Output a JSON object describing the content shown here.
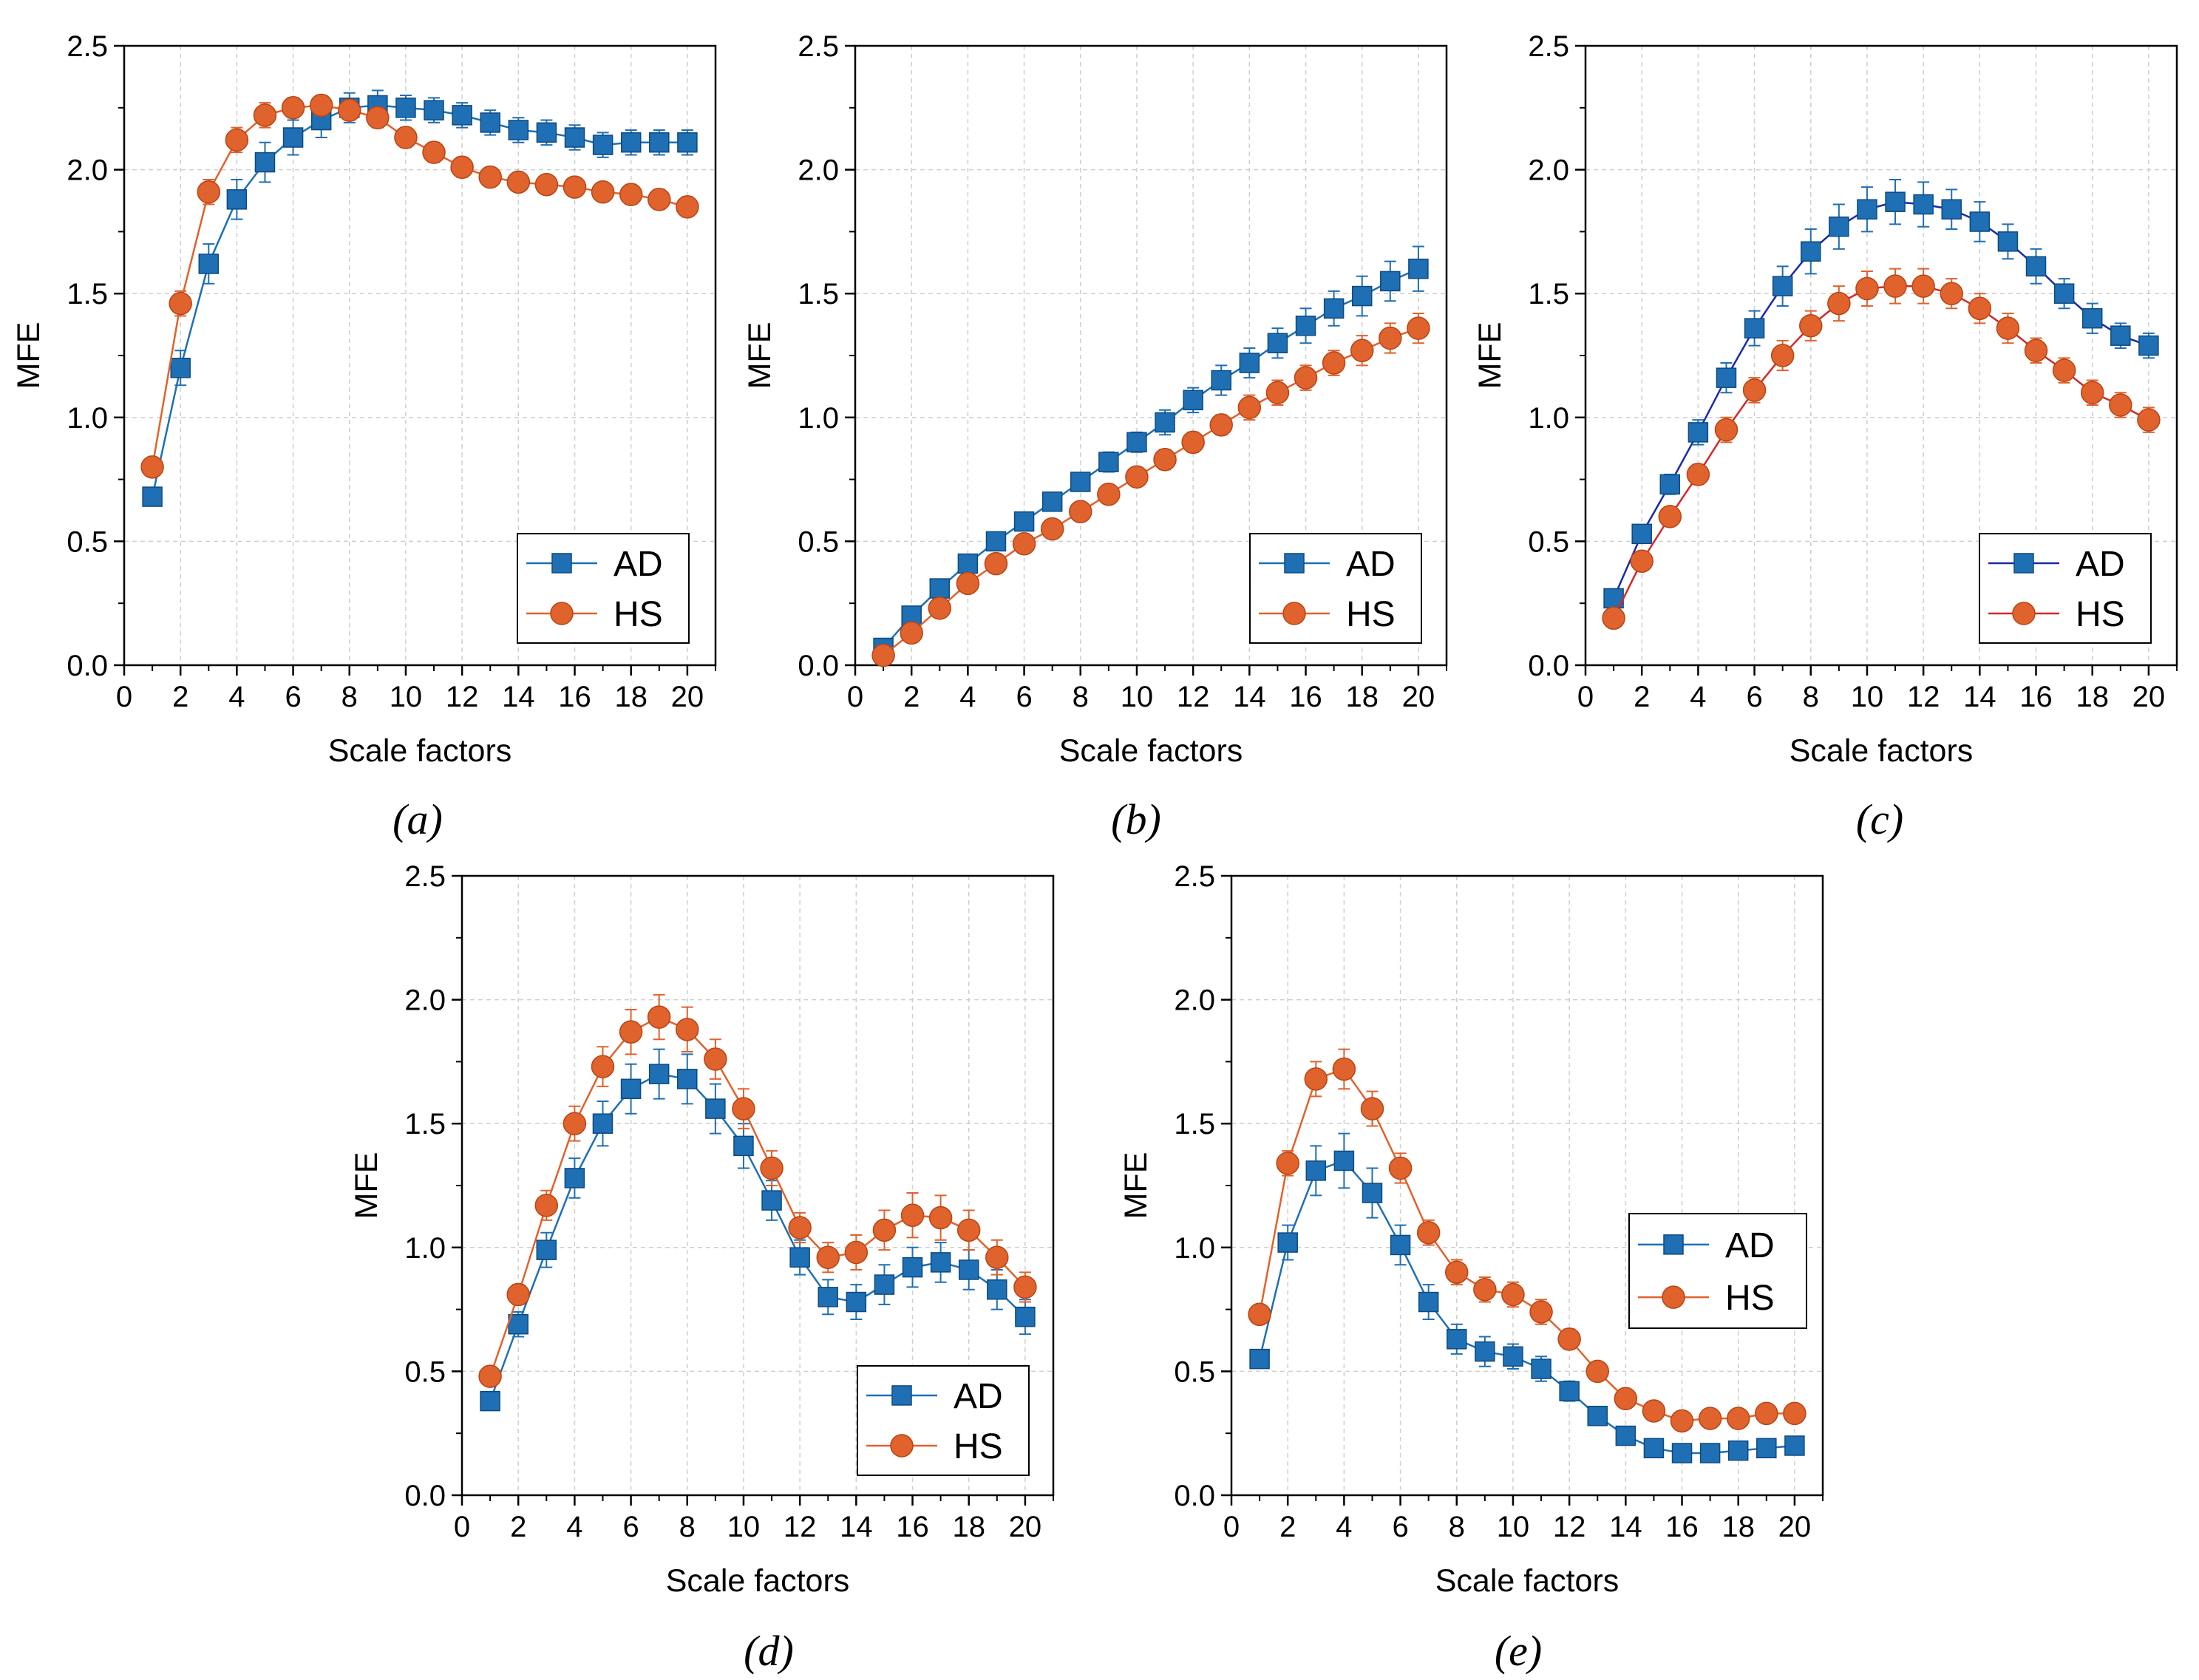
{
  "chart_data": [
    {
      "id": "a",
      "type": "line",
      "panel_label": "(a)",
      "xlabel": "Scale factors",
      "ylabel": "MFE",
      "xlim": [
        0,
        21
      ],
      "ylim": [
        0,
        2.5
      ],
      "xticks": [
        "0",
        "2",
        "4",
        "6",
        "8",
        "10",
        "12",
        "14",
        "16",
        "18",
        "20"
      ],
      "yticks": [
        "0.0",
        "0.5",
        "1.0",
        "1.5",
        "2.0",
        "2.5"
      ],
      "grid": true,
      "legend_position": "bottom-right",
      "x": [
        1,
        2,
        3,
        4,
        5,
        6,
        7,
        8,
        9,
        10,
        11,
        12,
        13,
        14,
        15,
        16,
        17,
        18,
        19,
        20
      ],
      "series": [
        {
          "name": "AD",
          "color": "#1f6fb4",
          "marker": "square",
          "values": [
            0.68,
            1.2,
            1.62,
            1.88,
            2.03,
            2.13,
            2.2,
            2.25,
            2.26,
            2.25,
            2.24,
            2.22,
            2.19,
            2.16,
            2.15,
            2.13,
            2.1,
            2.11,
            2.11,
            2.11
          ],
          "errors": [
            0.03,
            0.07,
            0.08,
            0.08,
            0.08,
            0.07,
            0.07,
            0.06,
            0.06,
            0.05,
            0.05,
            0.05,
            0.05,
            0.05,
            0.05,
            0.05,
            0.05,
            0.05,
            0.05,
            0.05
          ]
        },
        {
          "name": "HS",
          "color": "#e0622c",
          "marker": "circle",
          "values": [
            0.8,
            1.46,
            1.91,
            2.12,
            2.22,
            2.25,
            2.26,
            2.24,
            2.21,
            2.13,
            2.07,
            2.01,
            1.97,
            1.95,
            1.94,
            1.93,
            1.91,
            1.9,
            1.88,
            1.85
          ],
          "errors": [
            0.03,
            0.05,
            0.05,
            0.05,
            0.05,
            0.04,
            0.04,
            0.04,
            0.04,
            0.04,
            0.04,
            0.04,
            0.03,
            0.03,
            0.03,
            0.03,
            0.03,
            0.04,
            0.04,
            0.04
          ]
        }
      ]
    },
    {
      "id": "b",
      "type": "line",
      "panel_label": "(b)",
      "xlabel": "Scale factors",
      "ylabel": "MFE",
      "xlim": [
        0,
        21
      ],
      "ylim": [
        0,
        2.5
      ],
      "xticks": [
        "0",
        "2",
        "4",
        "6",
        "8",
        "10",
        "12",
        "14",
        "16",
        "18",
        "20"
      ],
      "yticks": [
        "0.0",
        "0.5",
        "1.0",
        "1.5",
        "2.0",
        "2.5"
      ],
      "grid": true,
      "legend_position": "bottom-right",
      "x": [
        1,
        2,
        3,
        4,
        5,
        6,
        7,
        8,
        9,
        10,
        11,
        12,
        13,
        14,
        15,
        16,
        17,
        18,
        19,
        20
      ],
      "series": [
        {
          "name": "AD",
          "color": "#1f6fb4",
          "marker": "square",
          "values": [
            0.07,
            0.2,
            0.31,
            0.41,
            0.5,
            0.58,
            0.66,
            0.74,
            0.82,
            0.9,
            0.98,
            1.07,
            1.15,
            1.22,
            1.3,
            1.37,
            1.44,
            1.49,
            1.55,
            1.6
          ],
          "errors": [
            0.01,
            0.02,
            0.02,
            0.02,
            0.03,
            0.03,
            0.03,
            0.03,
            0.04,
            0.04,
            0.05,
            0.05,
            0.06,
            0.06,
            0.06,
            0.07,
            0.07,
            0.08,
            0.08,
            0.09
          ]
        },
        {
          "name": "HS",
          "color": "#e0622c",
          "marker": "circle",
          "values": [
            0.04,
            0.13,
            0.23,
            0.33,
            0.41,
            0.49,
            0.55,
            0.62,
            0.69,
            0.76,
            0.83,
            0.9,
            0.97,
            1.04,
            1.1,
            1.16,
            1.22,
            1.27,
            1.32,
            1.36
          ],
          "errors": [
            0.01,
            0.01,
            0.02,
            0.02,
            0.02,
            0.02,
            0.02,
            0.03,
            0.03,
            0.03,
            0.04,
            0.04,
            0.04,
            0.05,
            0.05,
            0.05,
            0.05,
            0.06,
            0.06,
            0.06
          ]
        }
      ]
    },
    {
      "id": "c",
      "type": "line",
      "panel_label": "(c)",
      "xlabel": "Scale factors",
      "ylabel": "MFE",
      "xlim": [
        0,
        21
      ],
      "ylim": [
        0,
        2.5
      ],
      "xticks": [
        "0",
        "2",
        "4",
        "6",
        "8",
        "10",
        "12",
        "14",
        "16",
        "18",
        "20"
      ],
      "yticks": [
        "0.0",
        "0.5",
        "1.0",
        "1.5",
        "2.0",
        "2.5"
      ],
      "grid": true,
      "legend_position": "bottom-right",
      "x": [
        1,
        2,
        3,
        4,
        5,
        6,
        7,
        8,
        9,
        10,
        11,
        12,
        13,
        14,
        15,
        16,
        17,
        18,
        19,
        20
      ],
      "series": [
        {
          "name": "AD",
          "color": "#1f6fb4",
          "line_color": "#1a2aa8",
          "marker": "square",
          "values": [
            0.27,
            0.53,
            0.73,
            0.94,
            1.16,
            1.36,
            1.53,
            1.67,
            1.77,
            1.84,
            1.87,
            1.86,
            1.84,
            1.79,
            1.71,
            1.61,
            1.5,
            1.4,
            1.33,
            1.29
          ],
          "errors": [
            0.02,
            0.03,
            0.04,
            0.05,
            0.06,
            0.07,
            0.08,
            0.09,
            0.09,
            0.09,
            0.09,
            0.09,
            0.08,
            0.08,
            0.07,
            0.07,
            0.06,
            0.06,
            0.05,
            0.05
          ]
        },
        {
          "name": "HS",
          "color": "#e0622c",
          "line_color": "#d42828",
          "marker": "circle",
          "values": [
            0.19,
            0.42,
            0.6,
            0.77,
            0.95,
            1.11,
            1.25,
            1.37,
            1.46,
            1.52,
            1.53,
            1.53,
            1.5,
            1.44,
            1.36,
            1.27,
            1.19,
            1.1,
            1.05,
            0.99
          ],
          "errors": [
            0.02,
            0.03,
            0.03,
            0.04,
            0.05,
            0.05,
            0.06,
            0.06,
            0.07,
            0.07,
            0.07,
            0.07,
            0.06,
            0.06,
            0.06,
            0.05,
            0.05,
            0.05,
            0.05,
            0.05
          ]
        }
      ]
    },
    {
      "id": "d",
      "type": "line",
      "panel_label": "(d)",
      "xlabel": "Scale factors",
      "ylabel": "MFE",
      "xlim": [
        0,
        21
      ],
      "ylim": [
        0,
        2.5
      ],
      "xticks": [
        "0",
        "2",
        "4",
        "6",
        "8",
        "10",
        "12",
        "14",
        "16",
        "18",
        "20"
      ],
      "yticks": [
        "0.0",
        "0.5",
        "1.0",
        "1.5",
        "2.0",
        "2.5"
      ],
      "grid": true,
      "legend_position": "bottom-right",
      "x": [
        1,
        2,
        3,
        4,
        5,
        6,
        7,
        8,
        9,
        10,
        11,
        12,
        13,
        14,
        15,
        16,
        17,
        18,
        19,
        20
      ],
      "series": [
        {
          "name": "AD",
          "color": "#1f6fb4",
          "marker": "square",
          "values": [
            0.38,
            0.69,
            0.99,
            1.28,
            1.5,
            1.64,
            1.7,
            1.68,
            1.56,
            1.41,
            1.19,
            0.96,
            0.8,
            0.78,
            0.85,
            0.92,
            0.94,
            0.91,
            0.83,
            0.72
          ],
          "errors": [
            0.03,
            0.05,
            0.07,
            0.08,
            0.09,
            0.1,
            0.1,
            0.1,
            0.1,
            0.09,
            0.08,
            0.07,
            0.07,
            0.07,
            0.08,
            0.08,
            0.08,
            0.08,
            0.08,
            0.07
          ]
        },
        {
          "name": "HS",
          "color": "#e0622c",
          "marker": "circle",
          "values": [
            0.48,
            0.81,
            1.17,
            1.5,
            1.73,
            1.87,
            1.93,
            1.88,
            1.76,
            1.56,
            1.32,
            1.08,
            0.96,
            0.98,
            1.07,
            1.13,
            1.12,
            1.07,
            0.96,
            0.84
          ],
          "errors": [
            0.02,
            0.04,
            0.06,
            0.07,
            0.08,
            0.09,
            0.09,
            0.09,
            0.08,
            0.08,
            0.07,
            0.06,
            0.06,
            0.07,
            0.08,
            0.09,
            0.09,
            0.08,
            0.07,
            0.06
          ]
        }
      ]
    },
    {
      "id": "e",
      "type": "line",
      "panel_label": "(e)",
      "xlabel": "Scale factors",
      "ylabel": "MFE",
      "xlim": [
        0,
        21
      ],
      "ylim": [
        0,
        2.5
      ],
      "xticks": [
        "0",
        "2",
        "4",
        "6",
        "8",
        "10",
        "12",
        "14",
        "16",
        "18",
        "20"
      ],
      "yticks": [
        "0.0",
        "0.5",
        "1.0",
        "1.5",
        "2.0",
        "2.5"
      ],
      "grid": true,
      "legend_position": "top-right",
      "x": [
        1,
        2,
        3,
        4,
        5,
        6,
        7,
        8,
        9,
        10,
        11,
        12,
        13,
        14,
        15,
        16,
        17,
        18,
        19,
        20
      ],
      "series": [
        {
          "name": "AD",
          "color": "#1f6fb4",
          "marker": "square",
          "values": [
            0.55,
            1.02,
            1.31,
            1.35,
            1.22,
            1.01,
            0.78,
            0.63,
            0.58,
            0.56,
            0.51,
            0.42,
            0.32,
            0.24,
            0.19,
            0.17,
            0.17,
            0.18,
            0.19,
            0.2
          ],
          "errors": [
            0.03,
            0.07,
            0.1,
            0.11,
            0.1,
            0.08,
            0.07,
            0.06,
            0.06,
            0.05,
            0.05,
            0.04,
            0.03,
            0.02,
            0.02,
            0.02,
            0.02,
            0.02,
            0.02,
            0.02
          ]
        },
        {
          "name": "HS",
          "color": "#e0622c",
          "marker": "circle",
          "values": [
            0.73,
            1.34,
            1.68,
            1.72,
            1.56,
            1.32,
            1.06,
            0.9,
            0.83,
            0.81,
            0.74,
            0.63,
            0.5,
            0.39,
            0.34,
            0.3,
            0.31,
            0.31,
            0.33,
            0.33
          ],
          "errors": [
            0.02,
            0.05,
            0.07,
            0.08,
            0.07,
            0.06,
            0.05,
            0.05,
            0.05,
            0.05,
            0.05,
            0.04,
            0.03,
            0.03,
            0.02,
            0.02,
            0.02,
            0.02,
            0.02,
            0.02
          ]
        }
      ]
    }
  ]
}
